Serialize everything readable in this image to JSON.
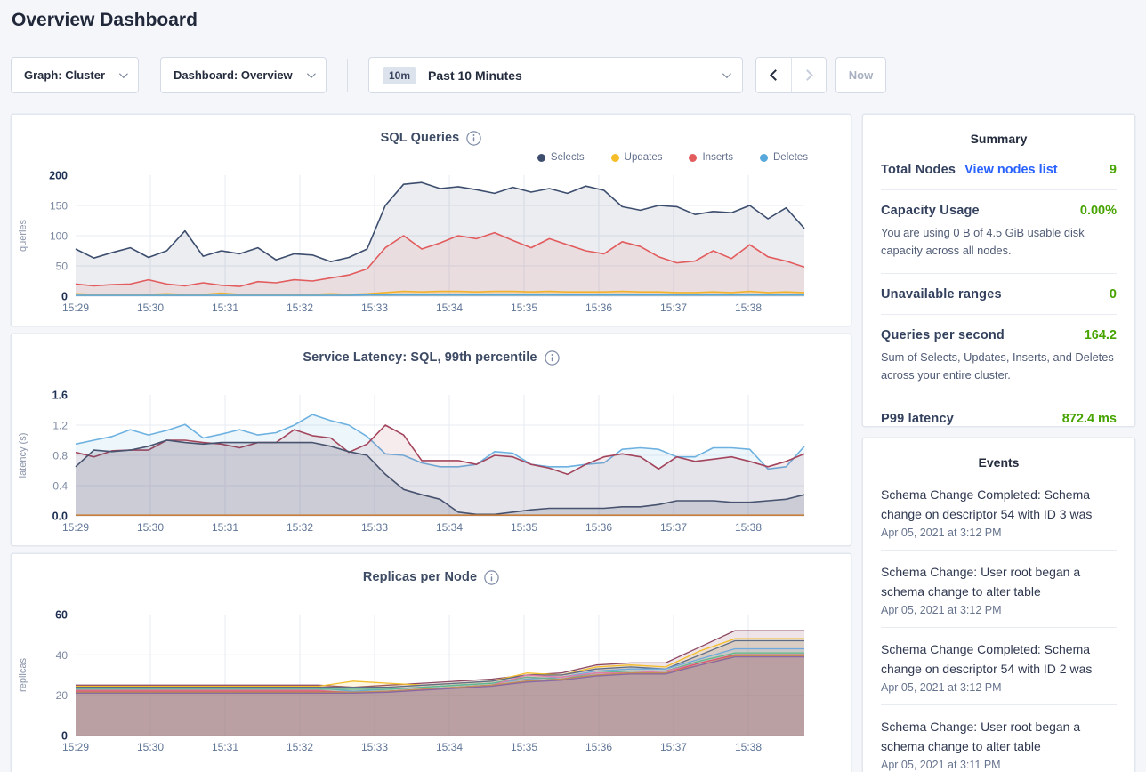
{
  "page": {
    "title": "Overview Dashboard"
  },
  "toolbar": {
    "graph_dropdown_label": "Graph: Cluster",
    "dashboard_dropdown_label": "Dashboard: Overview",
    "time_range_badge": "10m",
    "time_range_label": "Past 10 Minutes",
    "now_button_label": "Now"
  },
  "summary": {
    "title": "Summary",
    "total_nodes_label": "Total Nodes",
    "view_nodes_link": "View nodes list",
    "total_nodes_value": "9",
    "capacity_label": "Capacity Usage",
    "capacity_value": "0.00%",
    "capacity_subtext": "You are using 0 B of 4.5 GiB usable disk capacity across all nodes.",
    "unavailable_label": "Unavailable ranges",
    "unavailable_value": "0",
    "qps_label": "Queries per second",
    "qps_value": "164.2",
    "qps_subtext": "Sum of Selects, Updates, Inserts, and Deletes across your entire cluster.",
    "p99_label": "P99 latency",
    "p99_value": "872.4 ms"
  },
  "events": {
    "title": "Events",
    "items": [
      {
        "message": "Schema Change Completed: Schema change on descriptor 54 with ID 3 was",
        "timestamp": "Apr 05, 2021 at 3:12 PM"
      },
      {
        "message": "Schema Change: User root began a schema change to alter table",
        "timestamp": "Apr 05, 2021 at 3:12 PM"
      },
      {
        "message": "Schema Change Completed: Schema change on descriptor 54 with ID 2 was",
        "timestamp": "Apr 05, 2021 at 3:12 PM"
      },
      {
        "message": "Schema Change: User root began a schema change to alter table",
        "timestamp": "Apr 05, 2021 at 3:11 PM"
      }
    ]
  },
  "colors": {
    "positive_green": "#46a300",
    "link_blue": "#2962ff",
    "grid": "#e7ebf2",
    "axis_tick_bold": "#1d2f52",
    "axis_tick": "#7d89a1",
    "x_tick": "#5f7597"
  },
  "chart_data": [
    {
      "type": "area",
      "name": "sql-queries",
      "title": "SQL Queries",
      "ylabel": "queries",
      "ylim": [
        0,
        200
      ],
      "yticks": [
        0,
        50,
        100,
        150,
        200
      ],
      "ytick_labels": [
        "0",
        "50",
        "100",
        "150",
        "200"
      ],
      "x_tick_labels": [
        "15:29",
        "15:30",
        "15:31",
        "15:32",
        "15:33",
        "15:34",
        "15:35",
        "15:36",
        "15:37",
        "15:38"
      ],
      "x_span_minutes": 9.75,
      "grid": true,
      "legend": true,
      "legend_position": "top-right",
      "line_width": 1.6,
      "series": [
        {
          "name": "Selects",
          "color": "#3c4d6e",
          "fill_opacity": 0.1,
          "values": [
            78,
            63,
            72,
            80,
            64,
            75,
            108,
            66,
            75,
            70,
            80,
            60,
            70,
            68,
            57,
            64,
            78,
            150,
            185,
            188,
            178,
            181,
            176,
            170,
            180,
            172,
            178,
            170,
            182,
            175,
            148,
            142,
            150,
            148,
            135,
            140,
            138,
            150,
            128,
            146,
            112
          ]
        },
        {
          "name": "Updates",
          "color": "#f5bd27",
          "fill_opacity": 0.18,
          "values": [
            4,
            3,
            3,
            3,
            3,
            4,
            3,
            3,
            5,
            3,
            3,
            3,
            3,
            3,
            4,
            3,
            4,
            6,
            8,
            7,
            8,
            8,
            7,
            8,
            8,
            7,
            8,
            7,
            7,
            7,
            8,
            7,
            7,
            6,
            6,
            7,
            6,
            8,
            6,
            7,
            6
          ]
        },
        {
          "name": "Inserts",
          "color": "#e25b5d",
          "fill_opacity": 0.1,
          "values": [
            20,
            17,
            19,
            20,
            27,
            20,
            17,
            22,
            18,
            16,
            24,
            22,
            27,
            25,
            30,
            35,
            45,
            80,
            100,
            78,
            88,
            100,
            95,
            105,
            92,
            80,
            95,
            85,
            75,
            70,
            90,
            82,
            65,
            55,
            58,
            75,
            62,
            85,
            65,
            58,
            48
          ]
        },
        {
          "name": "Deletes",
          "color": "#57a8db",
          "fill_opacity": 0.25,
          "values": [
            1.5,
            1.5,
            1.5,
            1.5,
            1.5,
            1.5,
            1.5,
            1.5,
            1.5,
            1.5,
            1.5,
            1.5,
            1.5,
            1.5,
            1.5,
            1.5,
            2,
            2,
            2,
            2,
            2,
            2,
            2,
            2,
            2,
            2,
            2,
            2,
            2,
            2,
            2,
            2,
            2,
            2,
            2,
            2,
            2,
            2,
            2,
            2,
            2
          ]
        }
      ]
    },
    {
      "type": "area",
      "name": "service-latency",
      "title": "Service Latency: SQL, 99th percentile",
      "ylabel": "latency (s)",
      "ylim": [
        0,
        1.6
      ],
      "yticks": [
        0,
        0.4,
        0.8,
        1.2,
        1.6
      ],
      "ytick_labels": [
        "0.0",
        "0.4",
        "0.8",
        "1.2",
        "1.6"
      ],
      "x_tick_labels": [
        "15:29",
        "15:30",
        "15:31",
        "15:32",
        "15:33",
        "15:34",
        "15:35",
        "15:36",
        "15:37",
        "15:38"
      ],
      "x_span_minutes": 9.75,
      "grid": true,
      "legend": false,
      "line_width": 1.6,
      "series": [
        {
          "name": "series-1",
          "color": "#6db1e0",
          "fill_opacity": 0.12,
          "values": [
            0.95,
            1.0,
            1.05,
            1.14,
            1.07,
            1.13,
            1.21,
            1.03,
            1.08,
            1.14,
            1.07,
            1.1,
            1.2,
            1.34,
            1.26,
            1.2,
            1.05,
            0.82,
            0.8,
            0.7,
            0.65,
            0.65,
            0.68,
            0.85,
            0.83,
            0.68,
            0.65,
            0.65,
            0.68,
            0.7,
            0.88,
            0.9,
            0.88,
            0.78,
            0.78,
            0.9,
            0.9,
            0.88,
            0.62,
            0.65,
            0.92
          ]
        },
        {
          "name": "series-2",
          "color": "#a3455c",
          "fill_opacity": 0.1,
          "values": [
            0.84,
            0.78,
            0.86,
            0.87,
            0.87,
            1.0,
            1.0,
            0.97,
            0.95,
            0.9,
            0.97,
            0.97,
            1.14,
            1.06,
            1.03,
            0.84,
            0.95,
            1.2,
            1.07,
            0.73,
            0.73,
            0.73,
            0.68,
            0.8,
            0.78,
            0.68,
            0.63,
            0.55,
            0.68,
            0.78,
            0.82,
            0.78,
            0.62,
            0.78,
            0.72,
            0.75,
            0.78,
            0.72,
            0.65,
            0.72,
            0.82
          ]
        },
        {
          "name": "series-3",
          "color": "#47536f",
          "fill_opacity": 0.16,
          "values": [
            0.65,
            0.87,
            0.85,
            0.87,
            0.92,
            1.0,
            0.97,
            0.95,
            0.97,
            0.97,
            0.97,
            0.97,
            0.97,
            0.97,
            0.92,
            0.85,
            0.8,
            0.55,
            0.35,
            0.28,
            0.22,
            0.05,
            0.02,
            0.02,
            0.05,
            0.08,
            0.1,
            0.1,
            0.1,
            0.1,
            0.12,
            0.12,
            0.15,
            0.2,
            0.2,
            0.2,
            0.18,
            0.18,
            0.2,
            0.22,
            0.28
          ]
        },
        {
          "name": "series-4",
          "color": "#c77f3f",
          "fill_opacity": 0.2,
          "values": [
            0.01,
            0.01,
            0.01,
            0.01,
            0.01,
            0.01,
            0.01,
            0.01,
            0.01,
            0.01,
            0.01,
            0.01,
            0.01,
            0.01,
            0.01,
            0.01,
            0.01,
            0.01,
            0.01,
            0.01,
            0.01,
            0.01,
            0.01,
            0.01,
            0.01,
            0.01,
            0.01,
            0.01,
            0.01,
            0.01,
            0.01,
            0.01,
            0.01,
            0.01,
            0.01,
            0.01,
            0.01,
            0.01,
            0.01,
            0.01,
            0.01
          ]
        }
      ]
    },
    {
      "type": "area",
      "name": "replicas-per-node",
      "title": "Replicas per Node",
      "ylabel": "replicas",
      "ylim": [
        0,
        60
      ],
      "yticks": [
        0,
        20,
        40,
        60
      ],
      "ytick_labels": [
        "0",
        "20",
        "40",
        "60"
      ],
      "x_tick_labels": [
        "15:29",
        "15:30",
        "15:31",
        "15:32",
        "15:33",
        "15:34",
        "15:35",
        "15:36",
        "15:37",
        "15:38"
      ],
      "x_span_minutes": 9.75,
      "grid": true,
      "legend": false,
      "line_width": 1.3,
      "series": [
        {
          "name": "n1",
          "color": "#8e4a63",
          "fill_opacity": 0.14,
          "values": [
            25,
            25,
            25,
            25,
            25,
            25,
            25,
            25,
            24,
            25,
            26,
            27,
            28,
            30,
            31,
            35,
            36,
            36,
            44,
            52,
            52,
            52
          ]
        },
        {
          "name": "n2",
          "color": "#f2be2c",
          "fill_opacity": 0.14,
          "values": [
            24.5,
            24.5,
            24.5,
            24.5,
            24.5,
            24.5,
            24.5,
            24.5,
            27,
            26,
            25,
            26,
            27,
            31,
            30,
            34,
            35,
            34,
            42,
            48,
            48,
            48
          ]
        },
        {
          "name": "n3",
          "color": "#5f6c87",
          "fill_opacity": 0.14,
          "values": [
            24,
            24,
            24,
            24,
            24,
            24,
            24,
            24,
            24,
            24,
            25,
            26,
            27,
            30,
            30,
            33,
            34,
            33,
            40,
            47,
            47,
            47
          ]
        },
        {
          "name": "n4",
          "color": "#6fa8dc",
          "fill_opacity": 0.14,
          "values": [
            23.5,
            23.5,
            23.5,
            23.5,
            23.5,
            23.5,
            23.5,
            23.5,
            22,
            23,
            24,
            25,
            26,
            28,
            29,
            32,
            33,
            33,
            38,
            43,
            43,
            43
          ]
        },
        {
          "name": "n5",
          "color": "#5fb98a",
          "fill_opacity": 0.14,
          "values": [
            23,
            23,
            23,
            23,
            23,
            23,
            23,
            23,
            23,
            23,
            24,
            25,
            26,
            29,
            28,
            31,
            32,
            32,
            37,
            41,
            41,
            41
          ]
        },
        {
          "name": "n6",
          "color": "#e27caa",
          "fill_opacity": 0.14,
          "values": [
            22.5,
            22.5,
            22.5,
            22.5,
            22.5,
            22.5,
            22.5,
            22.5,
            21,
            22,
            23,
            24,
            25,
            30,
            29,
            31,
            31,
            32,
            36,
            40,
            40,
            40
          ]
        },
        {
          "name": "n7",
          "color": "#d9596b",
          "fill_opacity": 0.14,
          "values": [
            22,
            22,
            22,
            22,
            22,
            22,
            22,
            22,
            21.5,
            22,
            23,
            24,
            25,
            27,
            28,
            30,
            31,
            31,
            36,
            40,
            40,
            40
          ]
        },
        {
          "name": "n8",
          "color": "#bf8f55",
          "fill_opacity": 0.14,
          "values": [
            21.5,
            21.5,
            21.5,
            21.5,
            21.5,
            21.5,
            21.5,
            21.5,
            21.5,
            22,
            23,
            24,
            25,
            27,
            28,
            30,
            31,
            31,
            35,
            39.5,
            39.5,
            39.5
          ]
        },
        {
          "name": "n9",
          "color": "#8968a6",
          "fill_opacity": 0.14,
          "values": [
            21,
            21,
            21,
            21,
            21,
            21,
            21,
            21,
            21,
            21.5,
            22.5,
            23.5,
            24.5,
            26.5,
            27.5,
            29.5,
            30.5,
            30.5,
            35,
            39,
            39,
            39
          ]
        }
      ]
    }
  ]
}
